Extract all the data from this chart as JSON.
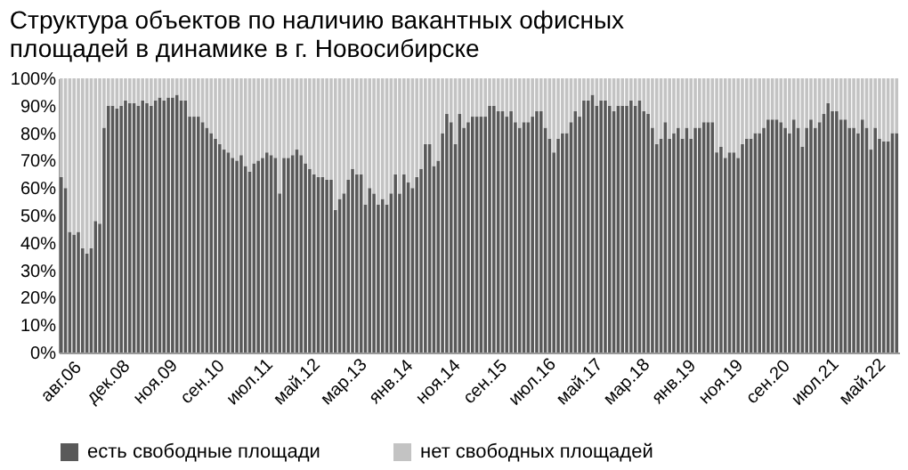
{
  "chart_data": {
    "type": "bar",
    "title": "Структура объектов по наличию вакантных офисных площадей в динамике в г. Новосибирске",
    "stacked": true,
    "categories": [
      "авг.06",
      null,
      null,
      null,
      null,
      null,
      null,
      null,
      null,
      null,
      null,
      "дек.08",
      null,
      null,
      null,
      null,
      null,
      null,
      null,
      null,
      null,
      null,
      "ноя.09",
      null,
      null,
      null,
      null,
      null,
      null,
      null,
      null,
      null,
      null,
      "сен.10",
      null,
      null,
      null,
      null,
      null,
      null,
      null,
      null,
      null,
      null,
      "июл.11",
      null,
      null,
      null,
      null,
      null,
      null,
      null,
      null,
      null,
      null,
      "май.12",
      null,
      null,
      null,
      null,
      null,
      null,
      null,
      null,
      null,
      null,
      "мар.13",
      null,
      null,
      null,
      null,
      null,
      null,
      null,
      null,
      null,
      null,
      "янв.14",
      null,
      null,
      null,
      null,
      null,
      null,
      null,
      null,
      null,
      null,
      "ноя.14",
      null,
      null,
      null,
      null,
      null,
      null,
      null,
      null,
      null,
      null,
      "сен.15",
      null,
      null,
      null,
      null,
      null,
      null,
      null,
      null,
      null,
      null,
      "июл.16",
      null,
      null,
      null,
      null,
      null,
      null,
      null,
      null,
      null,
      null,
      "май.17",
      null,
      null,
      null,
      null,
      null,
      null,
      null,
      null,
      null,
      null,
      "мар.18",
      null,
      null,
      null,
      null,
      null,
      null,
      null,
      null,
      null,
      null,
      "янв.19",
      null,
      null,
      null,
      null,
      null,
      null,
      null,
      null,
      null,
      null,
      "ноя.19",
      null,
      null,
      null,
      null,
      null,
      null,
      null,
      null,
      null,
      null,
      "сен.20",
      null,
      null,
      null,
      null,
      null,
      null,
      null,
      null,
      null,
      null,
      "июл.21",
      null,
      null,
      null,
      null,
      null,
      null,
      null,
      null,
      null,
      null,
      "май.22",
      null,
      null,
      null,
      null,
      null,
      null,
      null,
      null
    ],
    "series": [
      {
        "name": "есть свободные площади",
        "color": "#595959",
        "values": [
          64,
          60,
          44,
          43,
          44,
          38,
          36,
          38,
          48,
          47,
          82,
          90,
          90,
          89,
          90,
          92,
          91,
          91,
          90,
          92,
          91,
          90,
          92,
          93,
          92,
          93,
          93,
          94,
          92,
          92,
          86,
          86,
          86,
          84,
          82,
          80,
          78,
          76,
          74,
          73,
          71,
          70,
          72,
          68,
          66,
          69,
          70,
          71,
          73,
          72,
          71,
          58,
          71,
          71,
          72,
          74,
          72,
          69,
          67,
          65,
          64,
          64,
          63,
          63,
          52,
          56,
          58,
          63,
          67,
          65,
          65,
          54,
          60,
          58,
          54,
          56,
          54,
          58,
          65,
          58,
          65,
          62,
          60,
          64,
          67,
          76,
          76,
          68,
          70,
          80,
          87,
          84,
          76,
          87,
          82,
          84,
          86,
          86,
          86,
          86,
          90,
          90,
          88,
          88,
          86,
          88,
          84,
          82,
          84,
          84,
          86,
          88,
          88,
          82,
          78,
          73,
          78,
          80,
          80,
          84,
          88,
          86,
          92,
          92,
          94,
          90,
          92,
          92,
          90,
          88,
          90,
          90,
          90,
          92,
          90,
          92,
          88,
          87,
          82,
          76,
          78,
          84,
          78,
          80,
          82,
          78,
          82,
          78,
          82,
          82,
          84,
          84,
          84,
          73,
          75,
          71,
          73,
          73,
          71,
          76,
          78,
          78,
          80,
          80,
          82,
          85,
          85,
          85,
          84,
          82,
          80,
          85,
          82,
          75,
          82,
          85,
          82,
          84,
          87,
          91,
          88,
          88,
          85,
          85,
          82,
          82,
          80,
          85,
          82,
          74,
          82,
          78,
          77,
          77,
          80,
          80
        ]
      },
      {
        "name": "нет свободных площадей",
        "color": "#c3c3c3",
        "values": [
          36,
          40,
          56,
          57,
          56,
          62,
          64,
          62,
          52,
          53,
          18,
          10,
          10,
          11,
          10,
          8,
          9,
          9,
          10,
          8,
          9,
          10,
          8,
          7,
          8,
          7,
          7,
          6,
          8,
          8,
          14,
          14,
          14,
          16,
          18,
          20,
          22,
          24,
          26,
          27,
          29,
          30,
          28,
          32,
          34,
          31,
          30,
          29,
          27,
          28,
          29,
          42,
          29,
          29,
          28,
          26,
          28,
          31,
          33,
          35,
          36,
          36,
          37,
          37,
          48,
          44,
          42,
          37,
          33,
          35,
          35,
          46,
          40,
          42,
          46,
          44,
          46,
          42,
          35,
          42,
          35,
          38,
          40,
          36,
          33,
          24,
          24,
          32,
          30,
          20,
          13,
          16,
          24,
          13,
          18,
          16,
          14,
          14,
          14,
          14,
          10,
          10,
          12,
          12,
          14,
          12,
          16,
          18,
          16,
          16,
          14,
          12,
          12,
          18,
          22,
          27,
          22,
          20,
          20,
          16,
          12,
          14,
          8,
          8,
          6,
          10,
          8,
          8,
          10,
          12,
          10,
          10,
          10,
          8,
          10,
          8,
          12,
          13,
          18,
          24,
          22,
          16,
          22,
          20,
          18,
          22,
          18,
          22,
          18,
          18,
          16,
          16,
          16,
          27,
          25,
          29,
          27,
          27,
          29,
          24,
          22,
          22,
          20,
          20,
          18,
          15,
          15,
          15,
          16,
          18,
          20,
          15,
          18,
          25,
          18,
          15,
          18,
          16,
          13,
          9,
          12,
          12,
          15,
          15,
          18,
          18,
          20,
          15,
          18,
          26,
          18,
          22,
          23,
          23,
          20,
          20
        ]
      }
    ],
    "ylim": [
      0,
      100
    ],
    "yticks": [
      {
        "value": 0,
        "label": "0%"
      },
      {
        "value": 10,
        "label": "10%"
      },
      {
        "value": 20,
        "label": "20%"
      },
      {
        "value": 30,
        "label": "30%"
      },
      {
        "value": 40,
        "label": "40%"
      },
      {
        "value": 50,
        "label": "50%"
      },
      {
        "value": 60,
        "label": "60%"
      },
      {
        "value": 70,
        "label": "70%"
      },
      {
        "value": 80,
        "label": "80%"
      },
      {
        "value": 90,
        "label": "90%"
      },
      {
        "value": 100,
        "label": "100%"
      }
    ],
    "legend": "bottom"
  }
}
